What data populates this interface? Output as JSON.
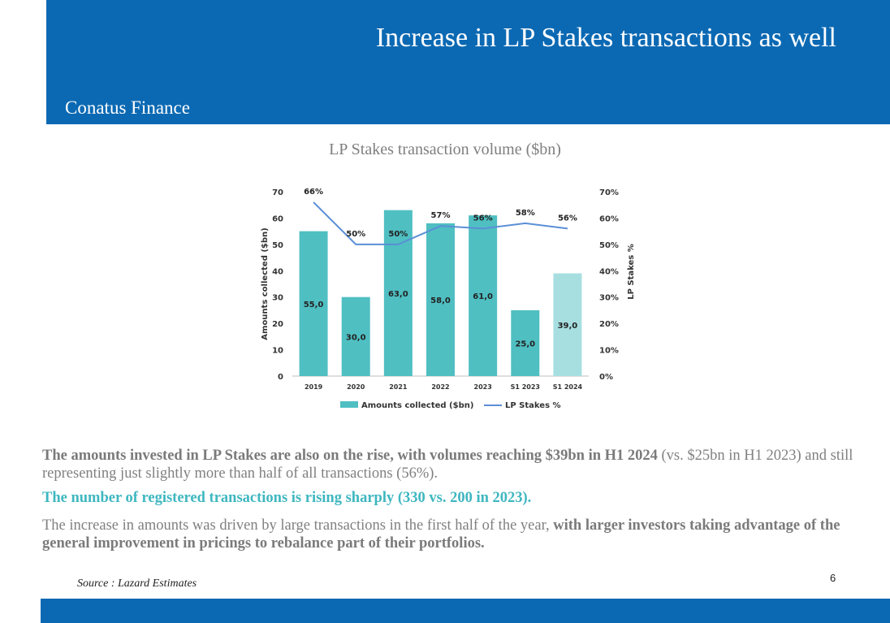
{
  "slide": {
    "title": "Increase in LP Stakes transactions as well",
    "brand": "Conatus Finance",
    "page_number": "6",
    "source": "Source : Lazard Estimates",
    "colors": {
      "header": "#0b69b3",
      "bar": "#4fbfc2",
      "bar_estimate": "#a7dfe1",
      "line": "#5b8fd6",
      "highlight": "#3fb7c0"
    }
  },
  "chart_data": {
    "type": "bar",
    "title": "LP Stakes transaction volume ($bn)",
    "categories": [
      "2019",
      "2020",
      "2021",
      "2022",
      "2023",
      "S1 2023",
      "S1 2024"
    ],
    "ylabel": "Amounts collected ($bn)",
    "y2label": "LP Stakes %",
    "ylim": [
      0,
      70
    ],
    "y2lim": [
      0,
      70
    ],
    "y_ticks": [
      "0",
      "10",
      "20",
      "30",
      "40",
      "50",
      "60",
      "70"
    ],
    "y2_ticks": [
      "0%",
      "10%",
      "20%",
      "30%",
      "40%",
      "50%",
      "60%",
      "70%"
    ],
    "series": [
      {
        "name": "Amounts collected ($bn)",
        "type": "bar",
        "values": [
          55,
          30,
          63,
          58,
          61,
          25,
          39
        ],
        "labels": [
          "55,0",
          "30,0",
          "63,0",
          "58,0",
          "61,0",
          "25,0",
          "39,0"
        ]
      },
      {
        "name": "LP Stakes %",
        "type": "line",
        "axis": "right",
        "values": [
          66,
          50,
          50,
          57,
          56,
          58,
          56
        ],
        "labels": [
          "66%",
          "50%",
          "50%",
          "57%",
          "56%",
          "58%",
          "56%"
        ]
      }
    ],
    "legend_position": "bottom",
    "grid": false
  },
  "text": {
    "p1_strong": "The amounts invested in LP Stakes are also on the rise, with volumes reaching $39bn in H1 2024",
    "p1_rest": " (vs. $25bn in H1 2023) and still representing just slightly more than half of all transactions (56%).",
    "p2": "The number of registered transactions is rising sharply (330 vs. 200 in 2023).",
    "p3_rest": "The increase in amounts was driven by large transactions in the first half of the year, ",
    "p3_strong": "with larger investors taking advantage of the general improvement in pricings to rebalance part of their portfolios."
  }
}
